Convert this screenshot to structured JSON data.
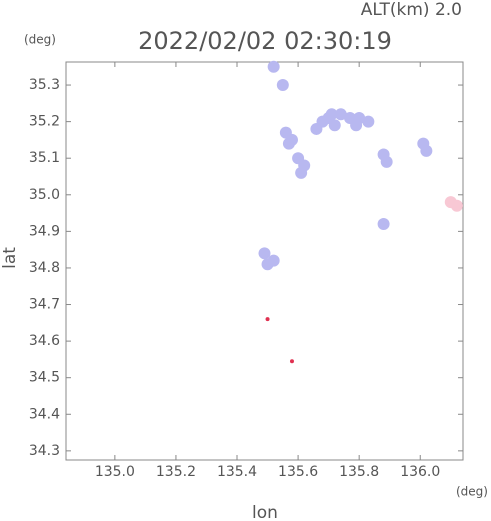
{
  "chart_data": {
    "type": "scatter",
    "title": "2022/02/02 02:30:19",
    "subtitle": "ALT(km) 2.0",
    "x_label": "lon",
    "y_label": "lat",
    "x_unit": "(deg)",
    "y_unit": "(deg)",
    "xlim": [
      134.84,
      136.14
    ],
    "ylim": [
      34.275,
      35.363
    ],
    "xticks": [
      {
        "value": 135,
        "label": "135.0"
      },
      135.2,
      135.4,
      135.6,
      135.8,
      {
        "value": 136,
        "label": "136.0"
      }
    ],
    "yticks": [
      34.3,
      34.4,
      34.5,
      34.6,
      34.7,
      34.8,
      34.9,
      {
        "value": 35,
        "label": "35.0"
      },
      35.1,
      35.2,
      35.3
    ],
    "series": [
      {
        "color": "#b8b8f0",
        "x": [
          135.52,
          135.55,
          135.66,
          135.68,
          135.71,
          135.74,
          135.77,
          135.8,
          135.83,
          135.79,
          135.72,
          135.7,
          135.56,
          135.58,
          135.57,
          135.6,
          135.62,
          135.61,
          135.88,
          135.89,
          136.01,
          136.02,
          135.88,
          135.49,
          135.5,
          135.52
        ],
        "y": [
          35.35,
          35.3,
          35.18,
          35.2,
          35.22,
          35.22,
          35.21,
          35.21,
          35.2,
          35.19,
          35.19,
          35.21,
          35.17,
          35.15,
          35.14,
          35.1,
          35.08,
          35.06,
          35.11,
          35.09,
          35.14,
          35.12,
          34.92,
          34.84,
          34.81,
          34.82
        ]
      },
      {
        "color": "#f8c8d4",
        "x": [
          136.1,
          136.12
        ],
        "y": [
          34.98,
          34.97
        ]
      },
      {
        "color": "#e03050",
        "x": [
          135.5,
          135.58
        ],
        "y": [
          34.66,
          34.545
        ]
      }
    ]
  }
}
